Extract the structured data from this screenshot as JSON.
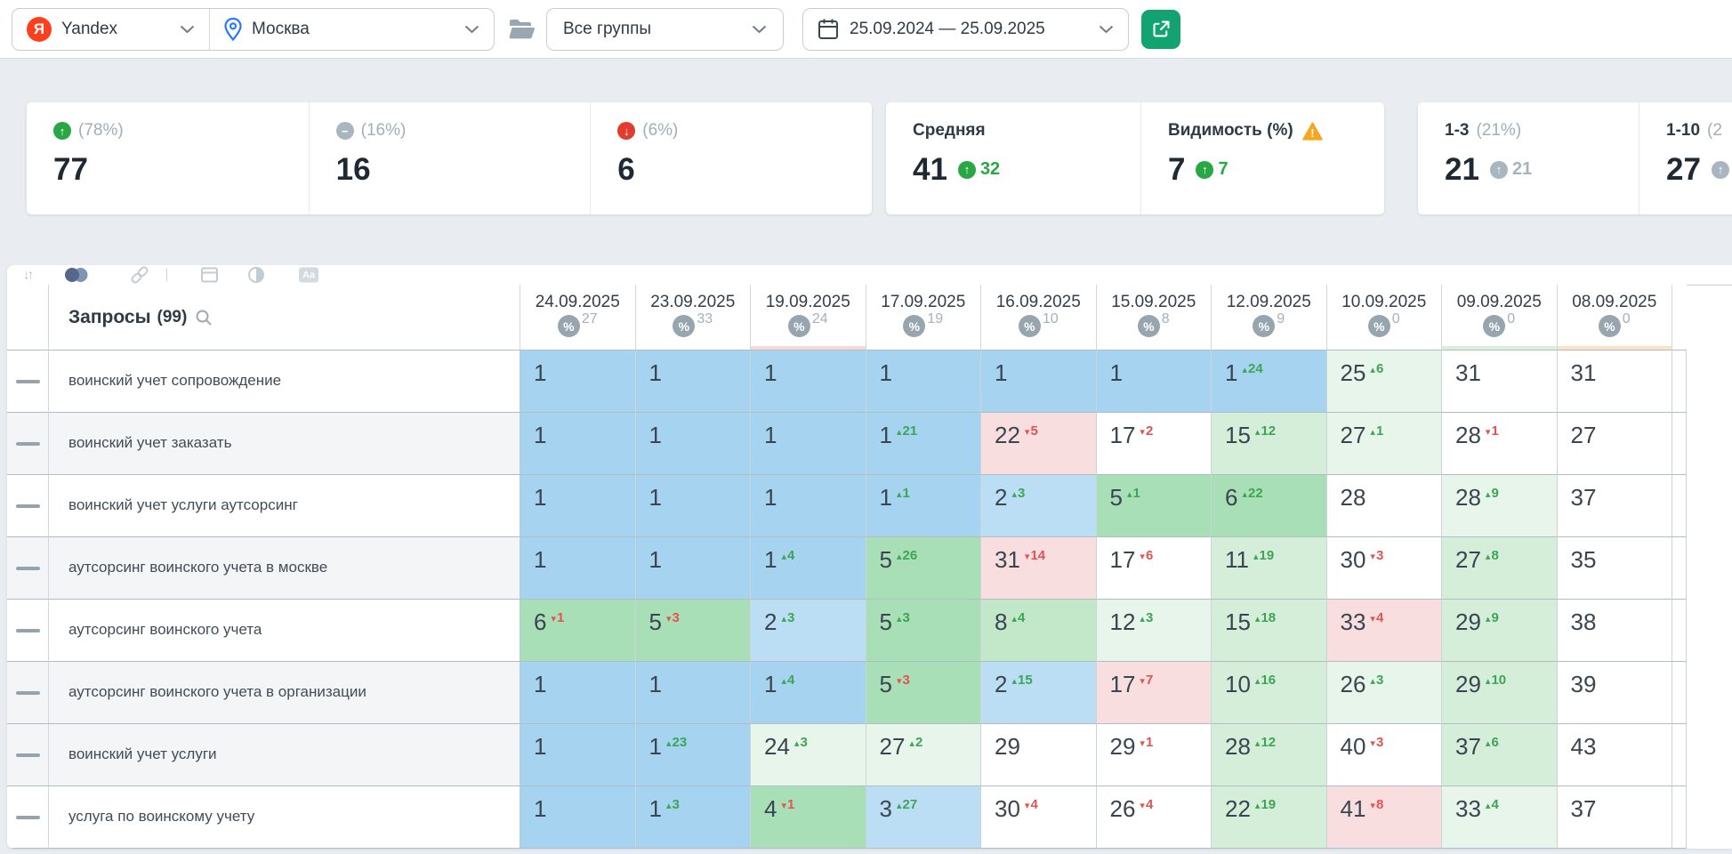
{
  "topbar": {
    "engine_label": "Yandex",
    "region_label": "Москва",
    "groups_label": "Все группы",
    "date_range_label": "25.09.2024 — 25.09.2025"
  },
  "stats": {
    "up": {
      "percent": "(78%)",
      "value": "77"
    },
    "same": {
      "percent": "(16%)",
      "value": "16"
    },
    "down": {
      "percent": "(6%)",
      "value": "6"
    },
    "average": {
      "label": "Средняя",
      "value": "41",
      "delta": "32"
    },
    "visibility": {
      "label": "Видимость (%)",
      "value": "7",
      "delta": "7"
    },
    "top3": {
      "label": "1-3",
      "percent": "(21%)",
      "value": "21",
      "delta": "21"
    },
    "top10": {
      "label": "1-10",
      "percent": "(2",
      "value": "27"
    }
  },
  "toolbar": {
    "icons": [
      "sort-icon",
      "toggle-icon",
      "link-icon",
      "divider",
      "table-icon",
      "contrast-icon",
      "text-style-icon"
    ],
    "text_icon_label": "Aa"
  },
  "table": {
    "queries_label": "Запросы",
    "queries_count": "(99)",
    "percent_symbol": "%",
    "columns": [
      {
        "date": "24.09.2025",
        "percent": "27",
        "strip": ""
      },
      {
        "date": "23.09.2025",
        "percent": "33",
        "strip": ""
      },
      {
        "date": "19.09.2025",
        "percent": "24",
        "strip": "#f6d8d5"
      },
      {
        "date": "17.09.2025",
        "percent": "19",
        "strip": ""
      },
      {
        "date": "16.09.2025",
        "percent": "10",
        "strip": ""
      },
      {
        "date": "15.09.2025",
        "percent": "8",
        "strip": ""
      },
      {
        "date": "12.09.2025",
        "percent": "9",
        "strip": ""
      },
      {
        "date": "10.09.2025",
        "percent": "0",
        "strip": ""
      },
      {
        "date": "09.09.2025",
        "percent": "0",
        "strip": "#d9efdb"
      },
      {
        "date": "08.09.2025",
        "percent": "0",
        "strip": "#fce3c3"
      }
    ],
    "rows": [
      {
        "query": "воинский учет сопровождение",
        "shaded": false,
        "cells": [
          [
            "1",
            "",
            "",
            "b1"
          ],
          [
            "1",
            "",
            "",
            "b1"
          ],
          [
            "1",
            "",
            "",
            "b1"
          ],
          [
            "1",
            "",
            "",
            "b1"
          ],
          [
            "1",
            "",
            "",
            "b1"
          ],
          [
            "1",
            "",
            "",
            "b1"
          ],
          [
            "1",
            "24",
            "u",
            "b1"
          ],
          [
            "25",
            "6",
            "u",
            "g4"
          ],
          [
            "31",
            "",
            "",
            "w"
          ],
          [
            "31",
            "",
            "",
            "w"
          ]
        ]
      },
      {
        "query": "воинский учет заказать",
        "shaded": true,
        "cells": [
          [
            "1",
            "",
            "",
            "b1"
          ],
          [
            "1",
            "",
            "",
            "b1"
          ],
          [
            "1",
            "",
            "",
            "b1"
          ],
          [
            "1",
            "21",
            "u",
            "b1"
          ],
          [
            "22",
            "5",
            "d",
            "r"
          ],
          [
            "17",
            "2",
            "d",
            "w"
          ],
          [
            "15",
            "12",
            "u",
            "g3"
          ],
          [
            "27",
            "1",
            "u",
            "g4"
          ],
          [
            "28",
            "1",
            "d",
            "w"
          ],
          [
            "27",
            "",
            "",
            "w"
          ]
        ]
      },
      {
        "query": "воинский учет услуги аутсорсинг",
        "shaded": false,
        "cells": [
          [
            "1",
            "",
            "",
            "b1"
          ],
          [
            "1",
            "",
            "",
            "b1"
          ],
          [
            "1",
            "",
            "",
            "b1"
          ],
          [
            "1",
            "1",
            "u",
            "b1"
          ],
          [
            "2",
            "3",
            "u",
            "b2"
          ],
          [
            "5",
            "1",
            "u",
            "g1"
          ],
          [
            "6",
            "22",
            "u",
            "g1"
          ],
          [
            "28",
            "",
            "",
            "w"
          ],
          [
            "28",
            "9",
            "u",
            "g4"
          ],
          [
            "37",
            "",
            "",
            "w"
          ]
        ]
      },
      {
        "query": "аутсорсинг воинского учета в москве",
        "shaded": true,
        "cells": [
          [
            "1",
            "",
            "",
            "b1"
          ],
          [
            "1",
            "",
            "",
            "b1"
          ],
          [
            "1",
            "4",
            "u",
            "b1"
          ],
          [
            "5",
            "26",
            "u",
            "g1"
          ],
          [
            "31",
            "14",
            "d",
            "r"
          ],
          [
            "17",
            "6",
            "d",
            "w"
          ],
          [
            "11",
            "19",
            "u",
            "g3"
          ],
          [
            "30",
            "3",
            "d",
            "w"
          ],
          [
            "27",
            "8",
            "u",
            "g3"
          ],
          [
            "35",
            "",
            "",
            "w"
          ]
        ]
      },
      {
        "query": "аутсорсинг воинского учета",
        "shaded": false,
        "cells": [
          [
            "6",
            "1",
            "d",
            "g1"
          ],
          [
            "5",
            "3",
            "d",
            "g1"
          ],
          [
            "2",
            "3",
            "u",
            "b2"
          ],
          [
            "5",
            "3",
            "u",
            "g1"
          ],
          [
            "8",
            "4",
            "u",
            "g2"
          ],
          [
            "12",
            "3",
            "u",
            "g4"
          ],
          [
            "15",
            "18",
            "u",
            "g3"
          ],
          [
            "33",
            "4",
            "d",
            "r"
          ],
          [
            "29",
            "9",
            "u",
            "g3"
          ],
          [
            "38",
            "",
            "",
            "w"
          ]
        ]
      },
      {
        "query": "аутсорсинг воинского учета в организации",
        "shaded": true,
        "cells": [
          [
            "1",
            "",
            "",
            "b1"
          ],
          [
            "1",
            "",
            "",
            "b1"
          ],
          [
            "1",
            "4",
            "u",
            "b1"
          ],
          [
            "5",
            "3",
            "d",
            "g1"
          ],
          [
            "2",
            "15",
            "u",
            "b2"
          ],
          [
            "17",
            "7",
            "d",
            "r"
          ],
          [
            "10",
            "16",
            "u",
            "g3"
          ],
          [
            "26",
            "3",
            "u",
            "g4"
          ],
          [
            "29",
            "10",
            "u",
            "g3"
          ],
          [
            "39",
            "",
            "",
            "w"
          ]
        ]
      },
      {
        "query": "воинский учет услуги",
        "shaded": true,
        "cells": [
          [
            "1",
            "",
            "",
            "b1"
          ],
          [
            "1",
            "23",
            "u",
            "b1"
          ],
          [
            "24",
            "3",
            "u",
            "g4"
          ],
          [
            "27",
            "2",
            "u",
            "g4"
          ],
          [
            "29",
            "",
            "",
            "w"
          ],
          [
            "29",
            "1",
            "d",
            "w"
          ],
          [
            "28",
            "12",
            "u",
            "g3"
          ],
          [
            "40",
            "3",
            "d",
            "w"
          ],
          [
            "37",
            "6",
            "u",
            "g3"
          ],
          [
            "43",
            "",
            "",
            "w"
          ]
        ]
      },
      {
        "query": "услуга по воинскому учету",
        "shaded": false,
        "cells": [
          [
            "1",
            "",
            "",
            "b1"
          ],
          [
            "1",
            "3",
            "u",
            "b1"
          ],
          [
            "4",
            "1",
            "d",
            "g1"
          ],
          [
            "3",
            "27",
            "u",
            "b2"
          ],
          [
            "30",
            "4",
            "d",
            "w"
          ],
          [
            "26",
            "4",
            "d",
            "w"
          ],
          [
            "22",
            "19",
            "u",
            "g3"
          ],
          [
            "41",
            "8",
            "d",
            "r"
          ],
          [
            "33",
            "4",
            "u",
            "g4"
          ],
          [
            "37",
            "",
            "",
            "w"
          ]
        ]
      }
    ]
  },
  "colors": {
    "accent_green": "#12a370",
    "up_delta": "#3da556",
    "down_delta": "#e25352",
    "pos_top1": "#a6d3ef",
    "pos_top3": "#bcdef4",
    "pos_4_6": "#a9dfb6",
    "pos_7_9": "#c3e7c9",
    "pos_10_20": "#d5eeda",
    "pos_20_plus": "#e8f5eb",
    "declined": "#f9dedf",
    "warning": "#f6a721",
    "yandex_red": "#fc3f1d"
  }
}
